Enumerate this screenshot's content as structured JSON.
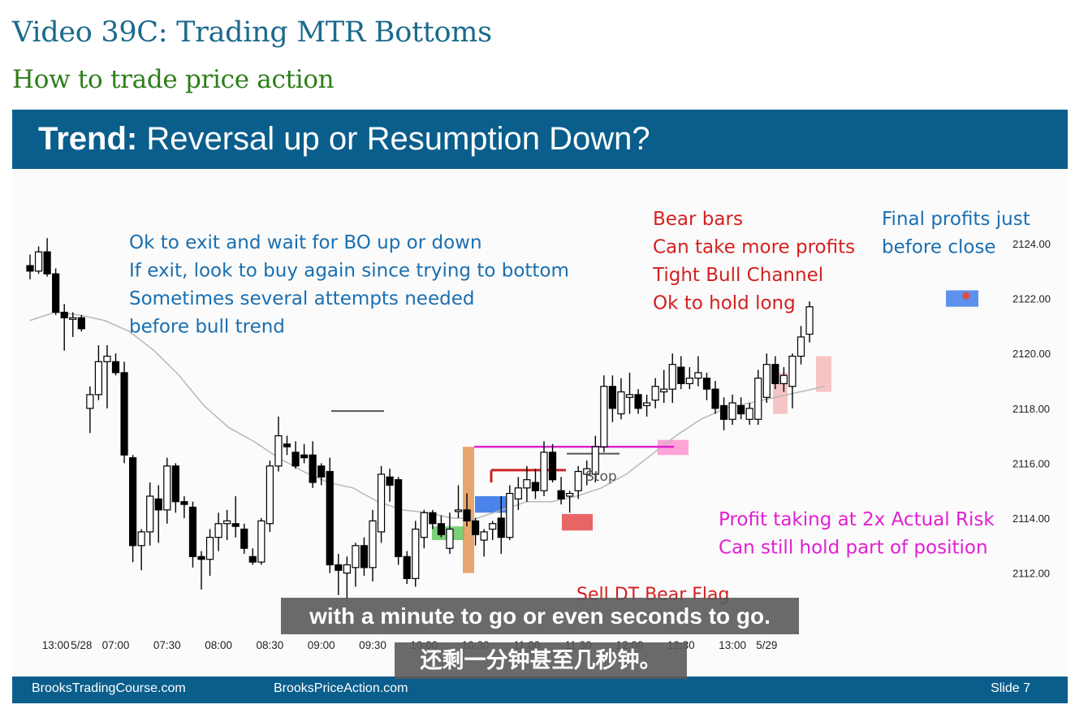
{
  "page": {
    "video_title": "Video 39C: Trading MTR Bottoms",
    "video_subtitle": "How to trade price action"
  },
  "slide": {
    "title_bold": "Trend:",
    "title_rest": " Reversal up or Resumption Down?",
    "footer_left": "BrooksTradingCourse.com",
    "footer_mid": "BrooksPriceAction.com",
    "footer_right": "Slide  7"
  },
  "captions": {
    "english": "with a minute to go or even seconds to go.",
    "chinese": "还剩一分钟甚至几秒钟。"
  },
  "colors": {
    "header_blue": "#0a5e8c",
    "annotation_blue": "#1a6fb0",
    "annotation_red": "#d42020",
    "annotation_magenta": "#e020d0",
    "ema_gray": "#b8b8b8"
  },
  "chart_data": {
    "type": "candlestick",
    "ylim": [
      2111,
      2125
    ],
    "y_ticks": [
      "2124.00",
      "2122.00",
      "2120.00",
      "2118.00",
      "2116.00",
      "2114.00",
      "2112.00"
    ],
    "y_tick_values": [
      2124,
      2122,
      2120,
      2118,
      2116,
      2114,
      2112
    ],
    "x_ticks": [
      "13:00",
      "5/28",
      "07:00",
      "07:30",
      "08:00",
      "08:30",
      "09:00",
      "09:30",
      "10:00",
      "10:30",
      "11:00",
      "11:30",
      "12:00",
      "12:30",
      "13:00",
      "5/29"
    ],
    "x_tick_bars": [
      3,
      6,
      10,
      16,
      22,
      28,
      34,
      40,
      46,
      52,
      58,
      64,
      70,
      76,
      82,
      86
    ],
    "ohlc": [
      [
        2123.2,
        2123.6,
        2122.7,
        2123.0
      ],
      [
        2123.0,
        2123.9,
        2122.9,
        2123.7
      ],
      [
        2123.7,
        2124.2,
        2122.8,
        2122.9
      ],
      [
        2122.9,
        2123.1,
        2121.4,
        2121.5
      ],
      [
        2121.5,
        2121.8,
        2120.1,
        2121.3
      ],
      [
        2121.3,
        2121.5,
        2120.6,
        2121.3
      ],
      [
        2121.3,
        2121.4,
        2120.8,
        2120.9
      ],
      [
        2118.0,
        2118.8,
        2117.1,
        2118.5
      ],
      [
        2118.5,
        2120.3,
        2118.3,
        2119.7
      ],
      [
        2119.7,
        2120.3,
        2118.0,
        2119.9
      ],
      [
        2119.7,
        2120.0,
        2119.2,
        2119.3
      ],
      [
        2119.3,
        2119.7,
        2116.0,
        2116.3
      ],
      [
        2116.2,
        2116.3,
        2112.4,
        2113.0
      ],
      [
        2113.0,
        2113.6,
        2112.1,
        2113.5
      ],
      [
        2113.5,
        2115.3,
        2113.0,
        2114.8
      ],
      [
        2114.7,
        2115.2,
        2113.1,
        2114.3
      ],
      [
        2114.3,
        2116.2,
        2113.8,
        2115.9
      ],
      [
        2115.9,
        2116.0,
        2114.2,
        2114.6
      ],
      [
        2114.6,
        2114.8,
        2114.0,
        2114.5
      ],
      [
        2114.4,
        2114.6,
        2112.2,
        2112.6
      ],
      [
        2112.6,
        2112.8,
        2111.4,
        2112.5
      ],
      [
        2112.5,
        2113.6,
        2111.9,
        2113.3
      ],
      [
        2113.3,
        2114.2,
        2112.8,
        2113.8
      ],
      [
        2113.8,
        2114.3,
        2113.2,
        2113.9
      ],
      [
        2113.8,
        2114.8,
        2113.3,
        2113.7
      ],
      [
        2113.6,
        2113.8,
        2112.7,
        2112.9
      ],
      [
        2112.6,
        2112.9,
        2112.3,
        2112.4
      ],
      [
        2112.4,
        2114.0,
        2112.3,
        2113.9
      ],
      [
        2113.8,
        2116.1,
        2113.5,
        2115.9
      ],
      [
        2115.9,
        2117.7,
        2115.7,
        2117.0
      ],
      [
        2116.7,
        2117.0,
        2116.3,
        2116.6
      ],
      [
        2116.4,
        2116.8,
        2115.8,
        2115.9
      ],
      [
        2116.3,
        2116.7,
        2116.0,
        2116.2
      ],
      [
        2116.3,
        2116.8,
        2115.1,
        2115.3
      ],
      [
        2115.9,
        2116.0,
        2115.2,
        2115.5
      ],
      [
        2115.7,
        2116.2,
        2112.0,
        2112.3
      ],
      [
        2112.3,
        2112.7,
        2111.2,
        2112.1
      ],
      [
        2112.0,
        2112.6,
        2111.0,
        2112.3
      ],
      [
        2112.2,
        2113.1,
        2111.5,
        2113.0
      ],
      [
        2113.0,
        2113.3,
        2111.9,
        2112.2
      ],
      [
        2112.2,
        2114.3,
        2111.7,
        2113.9
      ],
      [
        2113.5,
        2115.9,
        2113.1,
        2115.6
      ],
      [
        2115.5,
        2115.8,
        2114.6,
        2115.2
      ],
      [
        2115.4,
        2115.5,
        2112.3,
        2112.6
      ],
      [
        2112.6,
        2112.8,
        2111.6,
        2111.8
      ],
      [
        2111.8,
        2113.9,
        2111.5,
        2113.6
      ],
      [
        2113.3,
        2114.3,
        2112.9,
        2114.2
      ],
      [
        2114.2,
        2114.3,
        2113.6,
        2113.8
      ],
      [
        2113.8,
        2114.1,
        2113.3,
        2113.4
      ],
      [
        2112.9,
        2114.2,
        2112.7,
        2113.6
      ],
      [
        2114.3,
        2115.2,
        2114.0,
        2114.3
      ],
      [
        2114.3,
        2114.9,
        2113.7,
        2113.9
      ],
      [
        2113.9,
        2114.0,
        2113.0,
        2113.4
      ],
      [
        2113.2,
        2113.6,
        2112.6,
        2113.5
      ],
      [
        2113.6,
        2113.9,
        2113.2,
        2113.8
      ],
      [
        2114.0,
        2114.8,
        2112.7,
        2113.3
      ],
      [
        2113.3,
        2115.2,
        2113.2,
        2114.9
      ],
      [
        2114.7,
        2115.5,
        2114.3,
        2115.1
      ],
      [
        2115.1,
        2115.9,
        2114.6,
        2115.4
      ],
      [
        2115.3,
        2115.8,
        2114.7,
        2115.0
      ],
      [
        2115.0,
        2116.8,
        2114.8,
        2116.4
      ],
      [
        2116.4,
        2116.7,
        2115.3,
        2115.4
      ],
      [
        2115.0,
        2115.5,
        2114.5,
        2114.7
      ],
      [
        2114.8,
        2115.0,
        2114.2,
        2114.9
      ],
      [
        2115.0,
        2115.9,
        2114.7,
        2115.7
      ],
      [
        2115.6,
        2116.1,
        2115.2,
        2115.8
      ],
      [
        2115.6,
        2117.0,
        2115.3,
        2116.6
      ],
      [
        2116.6,
        2119.2,
        2116.4,
        2118.8
      ],
      [
        2118.8,
        2119.2,
        2117.5,
        2118.0
      ],
      [
        2117.8,
        2119.1,
        2117.6,
        2118.6
      ],
      [
        2118.4,
        2119.3,
        2117.8,
        2118.5
      ],
      [
        2118.5,
        2118.7,
        2117.8,
        2118.0
      ],
      [
        2118.1,
        2118.5,
        2117.7,
        2118.2
      ],
      [
        2118.3,
        2119.1,
        2118.0,
        2118.8
      ],
      [
        2118.6,
        2119.4,
        2118.2,
        2118.7
      ],
      [
        2118.7,
        2120.0,
        2118.2,
        2119.6
      ],
      [
        2119.5,
        2119.9,
        2118.7,
        2118.9
      ],
      [
        2118.9,
        2119.5,
        2118.7,
        2119.1
      ],
      [
        2119.1,
        2119.9,
        2118.8,
        2119.3
      ],
      [
        2119.1,
        2119.3,
        2118.3,
        2118.7
      ],
      [
        2118.7,
        2119.0,
        2117.8,
        2118.0
      ],
      [
        2118.1,
        2118.4,
        2117.2,
        2117.6
      ],
      [
        2117.6,
        2118.5,
        2117.4,
        2118.2
      ],
      [
        2118.1,
        2118.4,
        2117.6,
        2117.8
      ],
      [
        2117.6,
        2118.2,
        2117.4,
        2118.0
      ],
      [
        2117.6,
        2119.4,
        2117.4,
        2119.1
      ],
      [
        2118.4,
        2120.0,
        2118.2,
        2119.6
      ],
      [
        2119.6,
        2119.9,
        2118.7,
        2118.9
      ],
      [
        2118.9,
        2119.5,
        2118.6,
        2119.2
      ],
      [
        2118.8,
        2120.0,
        2118.0,
        2119.9
      ],
      [
        2119.9,
        2121.0,
        2119.6,
        2120.6
      ],
      [
        2120.7,
        2121.9,
        2120.4,
        2121.7
      ]
    ],
    "ema_prices": [
      2121.2,
      2121.5,
      2121.4,
      2121.2,
      2120.8,
      2120.1,
      2119.2,
      2118.1,
      2117.3,
      2116.8,
      2116.2,
      2115.7,
      2115.3,
      2115.1,
      2114.6,
      2114.3,
      2114.2,
      2114.0,
      2114.0,
      2114.3,
      2114.6,
      2114.6,
      2114.8,
      2115.1,
      2115.6,
      2116.3,
      2117.0,
      2117.6,
      2118.0,
      2118.2,
      2118.4,
      2118.6,
      2118.8
    ]
  },
  "annotations": {
    "blue_left": [
      "Ok to exit and wait for BO up or down",
      "If exit, look to buy again since trying to bottom",
      "Sometimes several attempts needed",
      "before bull trend"
    ],
    "red_right": [
      "Bear bars",
      "Can take more profits",
      "Tight Bull Channel",
      "Ok to hold long"
    ],
    "blue_right": [
      "Final profits just",
      "before close"
    ],
    "magenta": [
      "Profit taking at 2x Actual Risk",
      "Can still hold part of position"
    ],
    "stop": "Stop",
    "sell_flag": "Sell DT Bear Flag"
  }
}
